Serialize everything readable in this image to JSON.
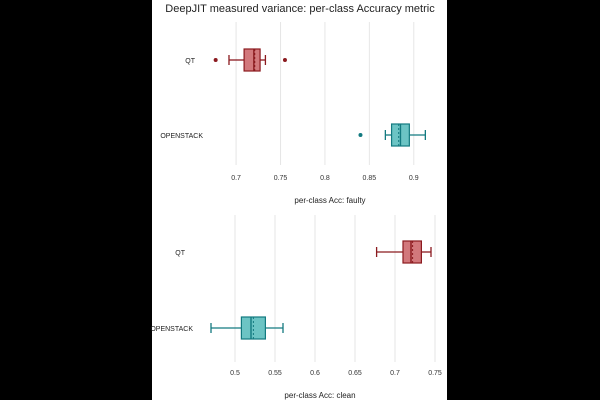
{
  "title": "DeepJIT measured variance: per-class Accuracy metric",
  "colors": {
    "QT_fill": "#d2787c",
    "QT_stroke": "#8b1a1f",
    "OPENSTACK_fill": "#6cc4c4",
    "OPENSTACK_stroke": "#137a80"
  },
  "chart_data": [
    {
      "type": "boxplot",
      "orientation": "horizontal",
      "xlabel": "per-class Acc: faulty",
      "xlim": [
        0.665,
        0.925
      ],
      "xticks": [
        0.7,
        0.75,
        0.8,
        0.85,
        0.9
      ],
      "xtick_labels": [
        "0.7",
        "0.75",
        "0.8",
        "0.85",
        "0.9"
      ],
      "categories": [
        "QT",
        "OPENSTACK"
      ],
      "series": [
        {
          "name": "QT",
          "whisker_low": 0.692,
          "q1": 0.709,
          "median": 0.72,
          "mean": 0.721,
          "q3": 0.727,
          "whisker_high": 0.733,
          "outliers": [
            0.677,
            0.755
          ]
        },
        {
          "name": "OPENSTACK",
          "whisker_low": 0.868,
          "q1": 0.875,
          "median": 0.885,
          "mean": 0.883,
          "q3": 0.895,
          "whisker_high": 0.913,
          "outliers": [
            0.84
          ]
        }
      ]
    },
    {
      "type": "boxplot",
      "orientation": "horizontal",
      "xlabel": "per-class Acc: clean",
      "xlim": [
        0.45,
        0.76
      ],
      "xticks": [
        0.5,
        0.55,
        0.6,
        0.65,
        0.7,
        0.75
      ],
      "xtick_labels": [
        "0.5",
        "0.55",
        "0.6",
        "0.65",
        "0.7",
        "0.75"
      ],
      "categories": [
        "QT",
        "OPENSTACK"
      ],
      "series": [
        {
          "name": "QT",
          "whisker_low": 0.677,
          "q1": 0.71,
          "median": 0.72,
          "mean": 0.722,
          "q3": 0.733,
          "whisker_high": 0.745,
          "outliers": []
        },
        {
          "name": "OPENSTACK",
          "whisker_low": 0.47,
          "q1": 0.508,
          "median": 0.52,
          "mean": 0.523,
          "q3": 0.538,
          "whisker_high": 0.56,
          "outliers": []
        }
      ]
    }
  ]
}
